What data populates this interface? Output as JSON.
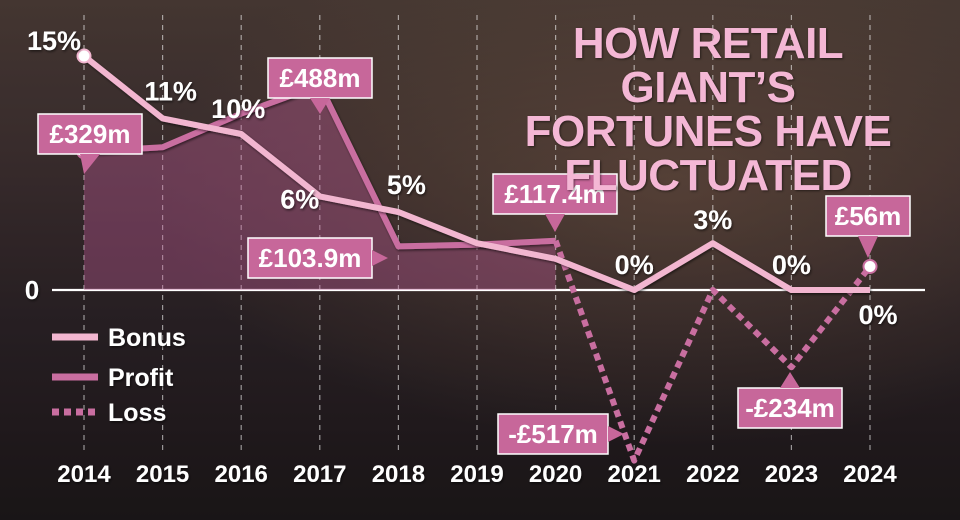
{
  "title_lines": [
    "HOW RETAIL GIANT’S",
    "FORTUNES HAVE",
    "FLUCTUATED"
  ],
  "colors": {
    "bonus": "#f2b6d0",
    "profit": "#c96ea0",
    "label_bg": "#c7679a",
    "text": "#ffffff",
    "zero_line": "#ffffff"
  },
  "chart_data": {
    "type": "line",
    "title": "HOW RETAIL GIANT’S FORTUNES HAVE FLUCTUATED",
    "x": [
      "2014",
      "2015",
      "2016",
      "2017",
      "2018",
      "2019",
      "2020",
      "2021",
      "2022",
      "2023",
      "2024"
    ],
    "y_zero_label": "0",
    "legend": {
      "position": "bottom-left",
      "entries": [
        "Bonus",
        "Profit",
        "Loss"
      ]
    },
    "grid": {
      "vertical": true,
      "horizontal": false
    },
    "series": [
      {
        "name": "Bonus",
        "unit": "%",
        "values": [
          15,
          11,
          10,
          6,
          5,
          3,
          2,
          0,
          3,
          0,
          0
        ],
        "labels": [
          "15%",
          "11%",
          "10%",
          "6%",
          "5%",
          null,
          null,
          "0%",
          "3%",
          "0%",
          "0%"
        ]
      },
      {
        "name": "Profit",
        "unit": "£m",
        "values": [
          329,
          340,
          420,
          488,
          103.9,
          108,
          117.4,
          null,
          null,
          null,
          56
        ],
        "labels": [
          "£329m",
          null,
          null,
          "£488m",
          "£103.9m",
          null,
          "£117.4m",
          null,
          null,
          null,
          "£56m"
        ]
      },
      {
        "name": "Loss",
        "unit": "£m",
        "values": [
          null,
          null,
          null,
          null,
          null,
          null,
          117.4,
          -517,
          0,
          -234,
          56
        ],
        "labels": [
          null,
          null,
          null,
          null,
          null,
          null,
          null,
          "-£517m",
          null,
          "-£234m",
          null
        ]
      }
    ]
  }
}
